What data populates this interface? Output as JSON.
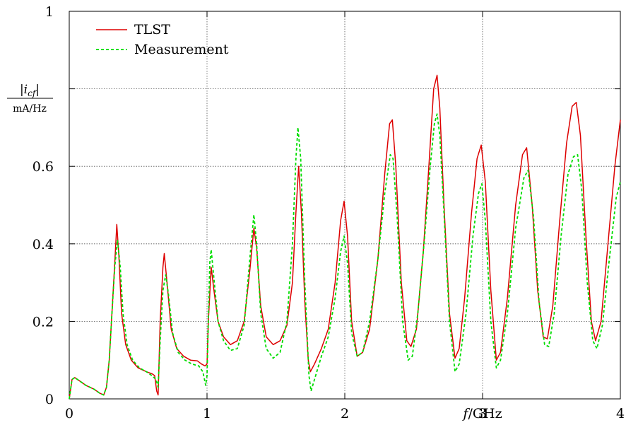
{
  "chart_data": {
    "type": "line",
    "title": "",
    "xlabel": "f/GHz",
    "xlabel_italic": "f",
    "xlabel_unit": "/GHz",
    "ylabel_numerator": "|i_cf|",
    "ylabel_denominator": "mA/Hz",
    "xlim": [
      0,
      4
    ],
    "ylim": [
      0,
      1
    ],
    "x_ticks": [
      0,
      1,
      2,
      3,
      4
    ],
    "x_tick_labels": [
      "0",
      "1",
      "2",
      "3",
      "4"
    ],
    "y_ticks": [
      0,
      0.2,
      0.4,
      0.6,
      0.8,
      1
    ],
    "y_tick_labels": [
      "0",
      "0.2",
      "0.4",
      "0.6",
      "",
      "1"
    ],
    "grid": true,
    "legend_position": "top-left",
    "series": [
      {
        "name": "TLST",
        "color": "#dd0000",
        "style": "solid",
        "points": [
          [
            0,
            0
          ],
          [
            0.02,
            0.05
          ],
          [
            0.04,
            0.055
          ],
          [
            0.08,
            0.045
          ],
          [
            0.12,
            0.035
          ],
          [
            0.18,
            0.025
          ],
          [
            0.22,
            0.015
          ],
          [
            0.25,
            0.01
          ],
          [
            0.27,
            0.03
          ],
          [
            0.29,
            0.1
          ],
          [
            0.31,
            0.22
          ],
          [
            0.33,
            0.35
          ],
          [
            0.345,
            0.45
          ],
          [
            0.36,
            0.37
          ],
          [
            0.38,
            0.22
          ],
          [
            0.41,
            0.14
          ],
          [
            0.45,
            0.1
          ],
          [
            0.5,
            0.08
          ],
          [
            0.56,
            0.07
          ],
          [
            0.6,
            0.065
          ],
          [
            0.62,
            0.06
          ],
          [
            0.635,
            0.02
          ],
          [
            0.645,
            0.01
          ],
          [
            0.66,
            0.2
          ],
          [
            0.68,
            0.34
          ],
          [
            0.69,
            0.375
          ],
          [
            0.71,
            0.3
          ],
          [
            0.74,
            0.18
          ],
          [
            0.78,
            0.13
          ],
          [
            0.83,
            0.11
          ],
          [
            0.88,
            0.1
          ],
          [
            0.93,
            0.098
          ],
          [
            0.96,
            0.09
          ],
          [
            0.985,
            0.085
          ],
          [
            1.0,
            0.09
          ],
          [
            1.01,
            0.2
          ],
          [
            1.03,
            0.34
          ],
          [
            1.05,
            0.28
          ],
          [
            1.08,
            0.2
          ],
          [
            1.12,
            0.16
          ],
          [
            1.17,
            0.14
          ],
          [
            1.22,
            0.15
          ],
          [
            1.27,
            0.2
          ],
          [
            1.31,
            0.33
          ],
          [
            1.34,
            0.44
          ],
          [
            1.36,
            0.39
          ],
          [
            1.39,
            0.24
          ],
          [
            1.43,
            0.16
          ],
          [
            1.48,
            0.14
          ],
          [
            1.53,
            0.15
          ],
          [
            1.58,
            0.19
          ],
          [
            1.62,
            0.3
          ],
          [
            1.645,
            0.48
          ],
          [
            1.665,
            0.6
          ],
          [
            1.685,
            0.48
          ],
          [
            1.71,
            0.25
          ],
          [
            1.735,
            0.1
          ],
          [
            1.75,
            0.07
          ],
          [
            1.78,
            0.09
          ],
          [
            1.83,
            0.13
          ],
          [
            1.88,
            0.18
          ],
          [
            1.93,
            0.3
          ],
          [
            1.97,
            0.46
          ],
          [
            1.995,
            0.51
          ],
          [
            2.02,
            0.42
          ],
          [
            2.05,
            0.2
          ],
          [
            2.09,
            0.11
          ],
          [
            2.13,
            0.12
          ],
          [
            2.18,
            0.18
          ],
          [
            2.24,
            0.36
          ],
          [
            2.29,
            0.58
          ],
          [
            2.325,
            0.71
          ],
          [
            2.345,
            0.72
          ],
          [
            2.37,
            0.6
          ],
          [
            2.41,
            0.3
          ],
          [
            2.45,
            0.15
          ],
          [
            2.48,
            0.135
          ],
          [
            2.52,
            0.18
          ],
          [
            2.57,
            0.38
          ],
          [
            2.61,
            0.6
          ],
          [
            2.645,
            0.8
          ],
          [
            2.67,
            0.835
          ],
          [
            2.69,
            0.75
          ],
          [
            2.72,
            0.5
          ],
          [
            2.76,
            0.22
          ],
          [
            2.8,
            0.105
          ],
          [
            2.83,
            0.13
          ],
          [
            2.87,
            0.26
          ],
          [
            2.92,
            0.48
          ],
          [
            2.96,
            0.62
          ],
          [
            2.99,
            0.655
          ],
          [
            3.02,
            0.56
          ],
          [
            3.06,
            0.28
          ],
          [
            3.1,
            0.1
          ],
          [
            3.13,
            0.12
          ],
          [
            3.18,
            0.26
          ],
          [
            3.24,
            0.5
          ],
          [
            3.29,
            0.63
          ],
          [
            3.32,
            0.648
          ],
          [
            3.36,
            0.5
          ],
          [
            3.4,
            0.28
          ],
          [
            3.44,
            0.16
          ],
          [
            3.47,
            0.155
          ],
          [
            3.51,
            0.24
          ],
          [
            3.56,
            0.46
          ],
          [
            3.61,
            0.66
          ],
          [
            3.65,
            0.755
          ],
          [
            3.68,
            0.765
          ],
          [
            3.71,
            0.68
          ],
          [
            3.75,
            0.42
          ],
          [
            3.79,
            0.2
          ],
          [
            3.82,
            0.15
          ],
          [
            3.86,
            0.2
          ],
          [
            3.91,
            0.4
          ],
          [
            3.96,
            0.6
          ],
          [
            4.0,
            0.72
          ]
        ]
      },
      {
        "name": "Measurement",
        "color": "#00dd00",
        "style": "dashed",
        "points": [
          [
            0,
            0
          ],
          [
            0.02,
            0.05
          ],
          [
            0.04,
            0.055
          ],
          [
            0.08,
            0.045
          ],
          [
            0.12,
            0.035
          ],
          [
            0.18,
            0.025
          ],
          [
            0.22,
            0.015
          ],
          [
            0.25,
            0.01
          ],
          [
            0.27,
            0.03
          ],
          [
            0.29,
            0.1
          ],
          [
            0.31,
            0.22
          ],
          [
            0.33,
            0.34
          ],
          [
            0.35,
            0.41
          ],
          [
            0.37,
            0.34
          ],
          [
            0.39,
            0.22
          ],
          [
            0.42,
            0.14
          ],
          [
            0.46,
            0.1
          ],
          [
            0.51,
            0.08
          ],
          [
            0.56,
            0.07
          ],
          [
            0.6,
            0.06
          ],
          [
            0.63,
            0.05
          ],
          [
            0.645,
            0.03
          ],
          [
            0.66,
            0.15
          ],
          [
            0.68,
            0.28
          ],
          [
            0.7,
            0.32
          ],
          [
            0.72,
            0.27
          ],
          [
            0.75,
            0.17
          ],
          [
            0.79,
            0.12
          ],
          [
            0.84,
            0.1
          ],
          [
            0.89,
            0.09
          ],
          [
            0.94,
            0.085
          ],
          [
            0.97,
            0.07
          ],
          [
            0.99,
            0.035
          ],
          [
            1.0,
            0.06
          ],
          [
            1.02,
            0.35
          ],
          [
            1.03,
            0.385
          ],
          [
            1.05,
            0.31
          ],
          [
            1.08,
            0.2
          ],
          [
            1.12,
            0.15
          ],
          [
            1.17,
            0.125
          ],
          [
            1.22,
            0.13
          ],
          [
            1.27,
            0.19
          ],
          [
            1.31,
            0.36
          ],
          [
            1.34,
            0.475
          ],
          [
            1.36,
            0.4
          ],
          [
            1.39,
            0.22
          ],
          [
            1.43,
            0.13
          ],
          [
            1.48,
            0.105
          ],
          [
            1.53,
            0.12
          ],
          [
            1.58,
            0.2
          ],
          [
            1.62,
            0.4
          ],
          [
            1.645,
            0.62
          ],
          [
            1.66,
            0.7
          ],
          [
            1.68,
            0.62
          ],
          [
            1.71,
            0.3
          ],
          [
            1.74,
            0.06
          ],
          [
            1.755,
            0.02
          ],
          [
            1.78,
            0.05
          ],
          [
            1.83,
            0.11
          ],
          [
            1.88,
            0.16
          ],
          [
            1.93,
            0.26
          ],
          [
            1.97,
            0.38
          ],
          [
            1.995,
            0.42
          ],
          [
            2.02,
            0.35
          ],
          [
            2.05,
            0.17
          ],
          [
            2.09,
            0.11
          ],
          [
            2.13,
            0.12
          ],
          [
            2.18,
            0.2
          ],
          [
            2.24,
            0.36
          ],
          [
            2.29,
            0.53
          ],
          [
            2.33,
            0.63
          ],
          [
            2.35,
            0.62
          ],
          [
            2.38,
            0.47
          ],
          [
            2.42,
            0.2
          ],
          [
            2.46,
            0.1
          ],
          [
            2.49,
            0.11
          ],
          [
            2.53,
            0.22
          ],
          [
            2.58,
            0.42
          ],
          [
            2.62,
            0.6
          ],
          [
            2.65,
            0.71
          ],
          [
            2.67,
            0.735
          ],
          [
            2.69,
            0.68
          ],
          [
            2.72,
            0.48
          ],
          [
            2.76,
            0.2
          ],
          [
            2.8,
            0.07
          ],
          [
            2.83,
            0.09
          ],
          [
            2.88,
            0.22
          ],
          [
            2.93,
            0.42
          ],
          [
            2.97,
            0.53
          ],
          [
            2.995,
            0.555
          ],
          [
            3.02,
            0.46
          ],
          [
            3.06,
            0.2
          ],
          [
            3.1,
            0.08
          ],
          [
            3.13,
            0.1
          ],
          [
            3.18,
            0.22
          ],
          [
            3.24,
            0.44
          ],
          [
            3.3,
            0.57
          ],
          [
            3.33,
            0.59
          ],
          [
            3.37,
            0.47
          ],
          [
            3.41,
            0.25
          ],
          [
            3.45,
            0.14
          ],
          [
            3.48,
            0.135
          ],
          [
            3.52,
            0.22
          ],
          [
            3.57,
            0.42
          ],
          [
            3.62,
            0.58
          ],
          [
            3.66,
            0.625
          ],
          [
            3.69,
            0.63
          ],
          [
            3.72,
            0.54
          ],
          [
            3.76,
            0.3
          ],
          [
            3.8,
            0.15
          ],
          [
            3.83,
            0.13
          ],
          [
            3.87,
            0.19
          ],
          [
            3.92,
            0.36
          ],
          [
            3.97,
            0.52
          ],
          [
            4.0,
            0.56
          ]
        ]
      }
    ]
  }
}
